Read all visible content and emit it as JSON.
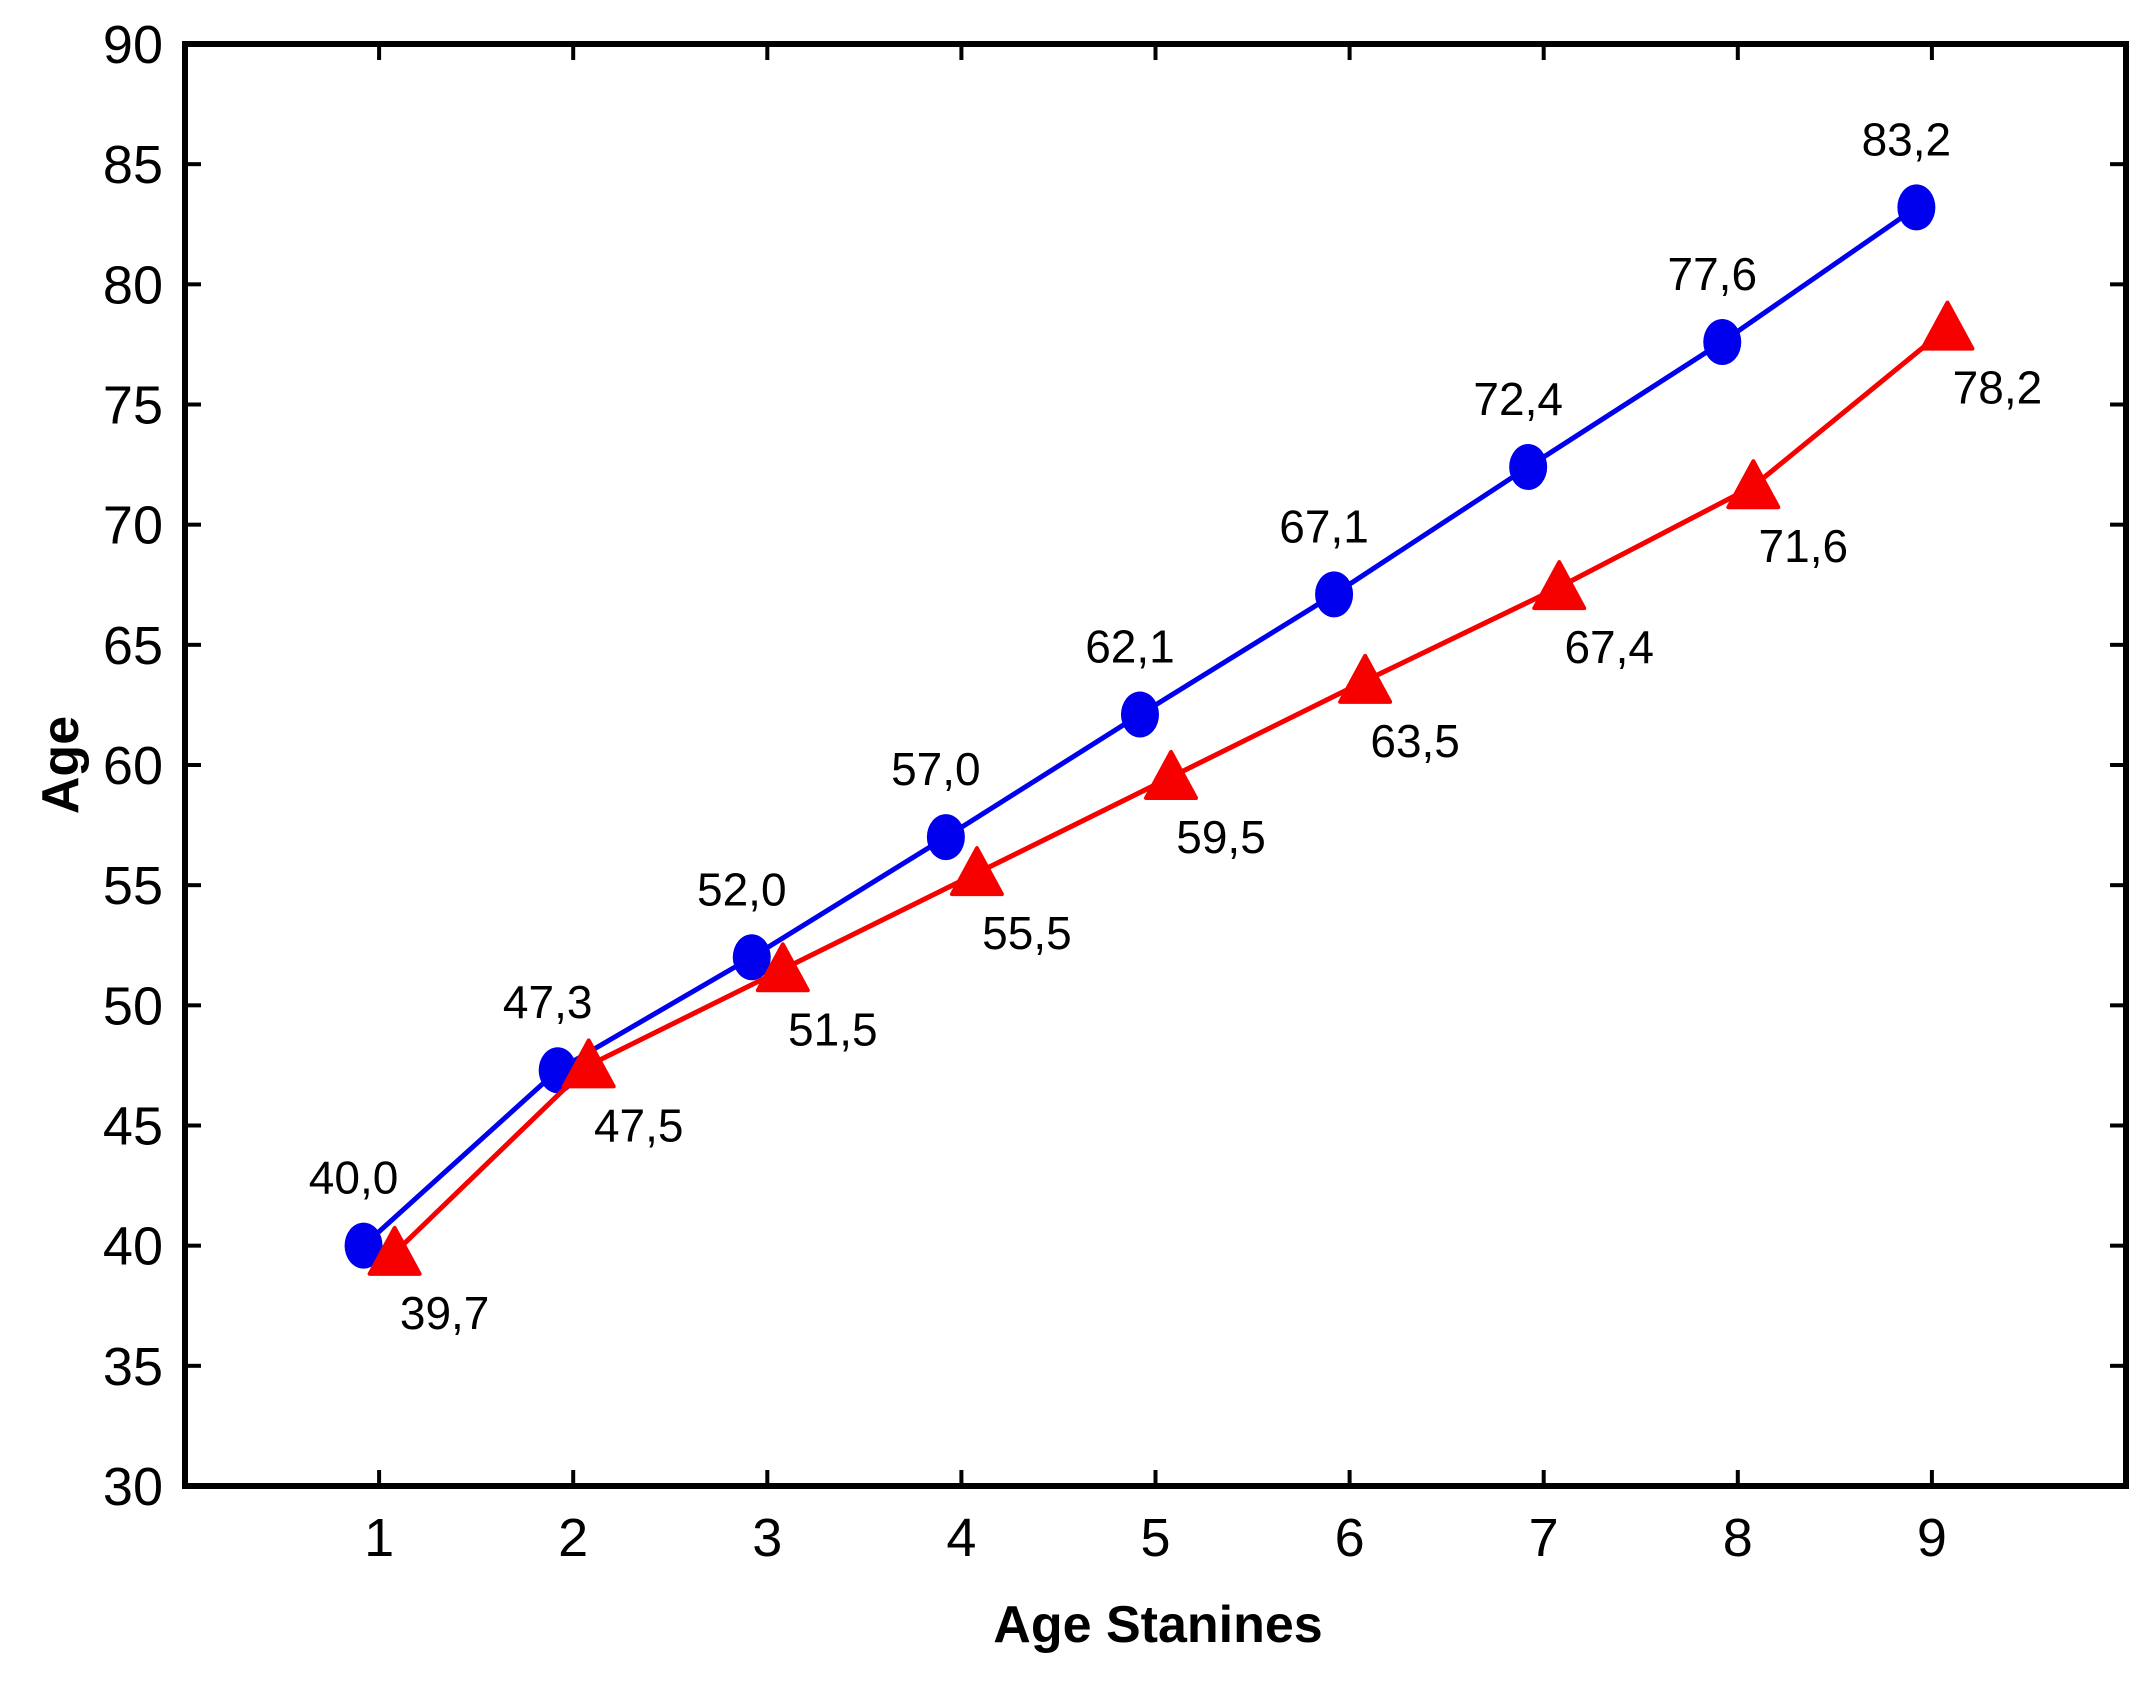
{
  "chart_data": {
    "type": "line",
    "title": "",
    "xlabel": "Age Stanines",
    "ylabel": "Age",
    "x": [
      1,
      2,
      3,
      4,
      5,
      6,
      7,
      8,
      9
    ],
    "x_tick_labels": [
      "1",
      "2",
      "3",
      "4",
      "5",
      "6",
      "7",
      "8",
      "9"
    ],
    "y_ticks": [
      30,
      35,
      40,
      45,
      50,
      55,
      60,
      65,
      70,
      75,
      80,
      85,
      90
    ],
    "y_tick_labels": [
      "30",
      "35",
      "40",
      "45",
      "50",
      "55",
      "60",
      "65",
      "70",
      "75",
      "80",
      "85",
      "90"
    ],
    "xlim": [
      0,
      10
    ],
    "ylim": [
      30,
      90
    ],
    "grid": false,
    "legend": "none",
    "decimal_separator": ",",
    "background_color": "#ffffff",
    "axis_color": "#000000",
    "series": [
      {
        "name": "blue-circle-series",
        "marker": "circle",
        "color": "#0000EE",
        "x_offset": -0.08,
        "label_position": "above",
        "values": [
          40.0,
          47.3,
          52.0,
          57.0,
          62.1,
          67.1,
          72.4,
          77.6,
          83.2
        ],
        "point_labels": [
          "40,0",
          "47,3",
          "52,0",
          "57,0",
          "62,1",
          "67,1",
          "72,4",
          "77,6",
          "83,2"
        ]
      },
      {
        "name": "red-triangle-series",
        "marker": "triangle-up",
        "color": "#F60000",
        "x_offset": 0.08,
        "label_position": "below-right",
        "values": [
          39.7,
          47.5,
          51.5,
          55.5,
          59.5,
          63.5,
          67.4,
          71.6,
          78.2
        ],
        "point_labels": [
          "39,7",
          "47,5",
          "51,5",
          "55,5",
          "59,5",
          "63,5",
          "67,4",
          "71,6",
          "78,2"
        ]
      }
    ]
  }
}
